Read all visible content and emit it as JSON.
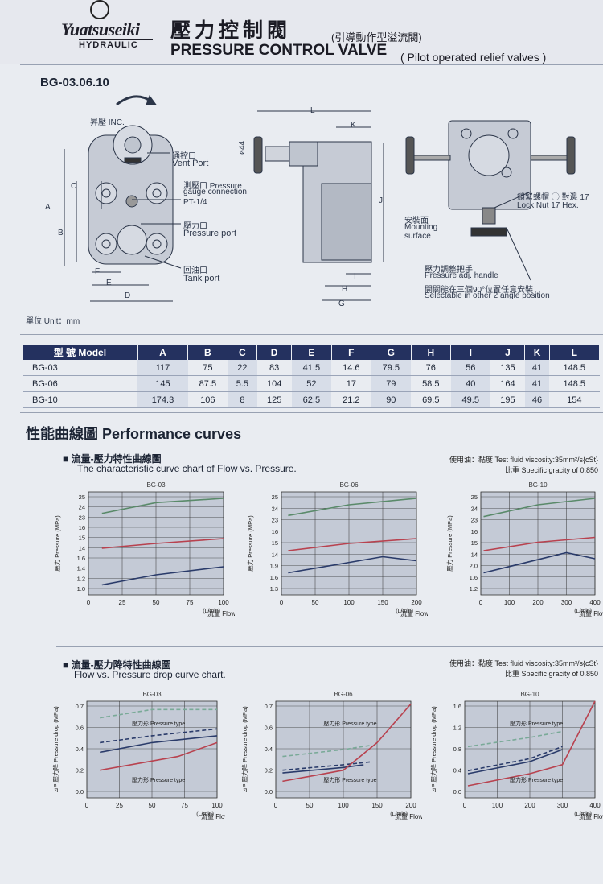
{
  "header": {
    "brand": "Yuatsuseiki",
    "brand_sub": "HYDRAULIC",
    "title_zh": "壓力控制閥",
    "title_zh_sub": "(引導動作型溢流閥)",
    "title_en": "PRESSURE CONTROL VALVE",
    "title_en_sub": "( Pilot operated relief valves )"
  },
  "model_code": "BG-03.06.10",
  "drawing": {
    "inc_label": "昇壓 INC.",
    "vent_zh": "通控口",
    "vent_en": "Vent Port",
    "gauge_zh": "測壓口 Pressure",
    "gauge_en": "gauge connection",
    "gauge_size": "PT-1/4",
    "pport_zh": "壓力口",
    "pport_en": "Pressure port",
    "tank_zh": "回油口",
    "tank_en": "Tank port",
    "phi": "ø44",
    "mount_zh": "安裝面",
    "mount_en1": "Mounting",
    "mount_en2": "surface",
    "locknut_zh": "鎖緊螺帽 ◯ 對邊 17",
    "locknut_en": "Lock Nut 17 Hex.",
    "handle_zh": "壓力調整把手",
    "handle_en": "Pressure adj. handle",
    "angle_zh": "開關能在三個90°位置任意安裝",
    "angle_en": "Selectable in other 2 angle position",
    "dims": {
      "A": "A",
      "B": "B",
      "C": "C",
      "D": "D",
      "E": "E",
      "F": "F",
      "G": "G",
      "H": "H",
      "I": "I",
      "J": "J",
      "K": "K",
      "L": "L"
    },
    "unit": "單位 Unit：mm"
  },
  "spec_table": {
    "headers": [
      "型 號 Model",
      "A",
      "B",
      "C",
      "D",
      "E",
      "F",
      "G",
      "H",
      "I",
      "J",
      "K",
      "L"
    ],
    "rows": [
      [
        "BG-03",
        "117",
        "75",
        "22",
        "83",
        "41.5",
        "14.6",
        "79.5",
        "76",
        "56",
        "135",
        "41",
        "148.5"
      ],
      [
        "BG-06",
        "145",
        "87.5",
        "5.5",
        "104",
        "52",
        "17",
        "79",
        "58.5",
        "40",
        "164",
        "41",
        "148.5"
      ],
      [
        "BG-10",
        "174.3",
        "106",
        "8",
        "125",
        "62.5",
        "21.2",
        "90",
        "69.5",
        "49.5",
        "195",
        "46",
        "154"
      ]
    ]
  },
  "perf": {
    "title": "性能曲線圖  Performance curves",
    "sec1_zh": "■ 流量-壓力特性曲線圖",
    "sec1_en": "The characteristic curve chart of Flow vs. Pressure.",
    "sec2_zh": "■ 流量-壓力降特性曲線圖",
    "sec2_en": "Flow vs. Pressure drop curve chart.",
    "note1": "使用油：黏度 Test fluid viscosity:35mm²/s{cSt}",
    "note2": "比重 Specific gracity of 0.850"
  },
  "chart_data": [
    {
      "type": "line",
      "title": "BG-03",
      "xlabel": "流量 Flow",
      "ylabel": "壓力 Pressure (MPa)",
      "x_unit": "(L/min)",
      "xlim": [
        0,
        100
      ],
      "x_ticks": [
        "0",
        "25",
        "50",
        "75",
        "100"
      ],
      "y_ticks": [
        "1.0",
        "1.2",
        "1.4",
        "1.6",
        "14",
        "15",
        "16",
        "23",
        "24",
        "25"
      ],
      "series": [
        {
          "color": "#5a8a6a",
          "x": [
            10,
            50,
            100
          ],
          "y": [
            23.6,
            24.6,
            25.0
          ]
        },
        {
          "color": "#b8424f",
          "x": [
            10,
            50,
            100
          ],
          "y": [
            15.2,
            15.6,
            16.0
          ]
        },
        {
          "color": "#2a3b6a",
          "x": [
            10,
            50,
            100
          ],
          "y": [
            1.05,
            1.3,
            1.5
          ]
        }
      ]
    },
    {
      "type": "line",
      "title": "BG-06",
      "xlabel": "流量 Flow",
      "ylabel": "壓力 Pressure (MPa)",
      "x_unit": "(L/min)",
      "xlim": [
        0,
        200
      ],
      "x_ticks": [
        "0",
        "50",
        "100",
        "150",
        "200"
      ],
      "y_ticks": [
        "1.3",
        "1.6",
        "1.9",
        "14",
        "15",
        "16",
        "23",
        "24",
        "25"
      ],
      "series": [
        {
          "color": "#5a8a6a",
          "x": [
            10,
            100,
            200
          ],
          "y": [
            23.4,
            24.4,
            25.0
          ]
        },
        {
          "color": "#b8424f",
          "x": [
            10,
            100,
            200
          ],
          "y": [
            15.0,
            15.6,
            16.0
          ]
        },
        {
          "color": "#2a3b6a",
          "x": [
            10,
            150,
            200
          ],
          "y": [
            1.35,
            1.75,
            1.65
          ]
        }
      ]
    },
    {
      "type": "line",
      "title": "BG-10",
      "xlabel": "流量 Flow",
      "ylabel": "壓力 Pressure (MPa)",
      "x_unit": "(L/min)",
      "xlim": [
        0,
        400
      ],
      "x_ticks": [
        "0",
        "100",
        "200",
        "300",
        "400"
      ],
      "y_ticks": [
        "1.2",
        "1.6",
        "2.0",
        "14",
        "15",
        "16",
        "23",
        "24",
        "25"
      ],
      "series": [
        {
          "color": "#5a8a6a",
          "x": [
            10,
            200,
            400
          ],
          "y": [
            23.3,
            24.4,
            25.0
          ]
        },
        {
          "color": "#b8424f",
          "x": [
            10,
            200,
            400
          ],
          "y": [
            15.0,
            15.7,
            16.1
          ]
        },
        {
          "color": "#2a3b6a",
          "x": [
            10,
            300,
            400
          ],
          "y": [
            1.35,
            1.85,
            1.7
          ]
        }
      ]
    },
    {
      "type": "line",
      "title": "BG-03",
      "xlabel": "流量 Flow",
      "ylabel": "⊿P 壓力降 Pressure drop (MPa)",
      "x_unit": "(L/min)",
      "xlim": [
        0,
        100
      ],
      "ylim": [
        0,
        0.7
      ],
      "x_ticks": [
        "0",
        "25",
        "50",
        "75",
        "100"
      ],
      "y_ticks": [
        "0.0",
        "0.2",
        "0.4",
        "0.6",
        "0.7"
      ],
      "annotations": [
        "壓力形 Pressure type",
        "壓力形 Pressure type"
      ],
      "series": [
        {
          "color": "#7aaa98",
          "dash": true,
          "x": [
            10,
            50,
            100
          ],
          "y": [
            0.58,
            0.64,
            0.64
          ]
        },
        {
          "color": "#2a3b6a",
          "dash": true,
          "x": [
            10,
            50,
            100
          ],
          "y": [
            0.4,
            0.45,
            0.5
          ]
        },
        {
          "color": "#2a3b6a",
          "x": [
            10,
            50,
            100
          ],
          "y": [
            0.33,
            0.4,
            0.45
          ]
        },
        {
          "color": "#b8424f",
          "x": [
            10,
            70,
            100
          ],
          "y": [
            0.2,
            0.3,
            0.4
          ]
        }
      ]
    },
    {
      "type": "line",
      "title": "BG-06",
      "xlabel": "流量 Flow",
      "ylabel": "⊿P 壓力降 Pressure drop (MPa)",
      "x_unit": "(L/min)",
      "xlim": [
        0,
        200
      ],
      "ylim": [
        0,
        0.7
      ],
      "x_ticks": [
        "0",
        "50",
        "100",
        "150",
        "200"
      ],
      "y_ticks": [
        "0.0",
        "0.2",
        "0.4",
        "0.6",
        "0.7"
      ],
      "annotations": [
        "壓力形 Pressure type",
        "壓力形 Pressure type"
      ],
      "series": [
        {
          "color": "#7aaa98",
          "dash": true,
          "x": [
            10,
            100,
            140
          ],
          "y": [
            0.3,
            0.35,
            0.38
          ]
        },
        {
          "color": "#2a3b6a",
          "dash": true,
          "x": [
            10,
            100,
            140
          ],
          "y": [
            0.2,
            0.24,
            0.26
          ]
        },
        {
          "color": "#2a3b6a",
          "x": [
            10,
            100,
            130
          ],
          "y": [
            0.18,
            0.22,
            0.24
          ]
        },
        {
          "color": "#b8424f",
          "x": [
            10,
            100,
            150,
            200
          ],
          "y": [
            0.12,
            0.2,
            0.4,
            0.68
          ]
        }
      ]
    },
    {
      "type": "line",
      "title": "BG-10",
      "xlabel": "流量 Flow",
      "ylabel": "⊿P 壓力降 Pressure drop (MPa)",
      "x_unit": "(L/min)",
      "xlim": [
        0,
        400
      ],
      "ylim": [
        0,
        1.6
      ],
      "x_ticks": [
        "0",
        "100",
        "200",
        "300",
        "400"
      ],
      "y_ticks": [
        "0.0",
        "0.4",
        "0.8",
        "1.2",
        "1.6"
      ],
      "annotations": [
        "壓力形 Pressure type",
        "壓力形 Pressure type"
      ],
      "series": [
        {
          "color": "#7aaa98",
          "dash": true,
          "x": [
            10,
            200,
            300
          ],
          "y": [
            0.85,
            1.0,
            1.1
          ]
        },
        {
          "color": "#2a3b6a",
          "dash": true,
          "x": [
            10,
            200,
            300
          ],
          "y": [
            0.45,
            0.65,
            0.85
          ]
        },
        {
          "color": "#2a3b6a",
          "x": [
            10,
            200,
            300
          ],
          "y": [
            0.4,
            0.6,
            0.8
          ]
        },
        {
          "color": "#b8424f",
          "x": [
            10,
            200,
            300,
            400
          ],
          "y": [
            0.2,
            0.4,
            0.55,
            1.6
          ]
        }
      ]
    }
  ]
}
